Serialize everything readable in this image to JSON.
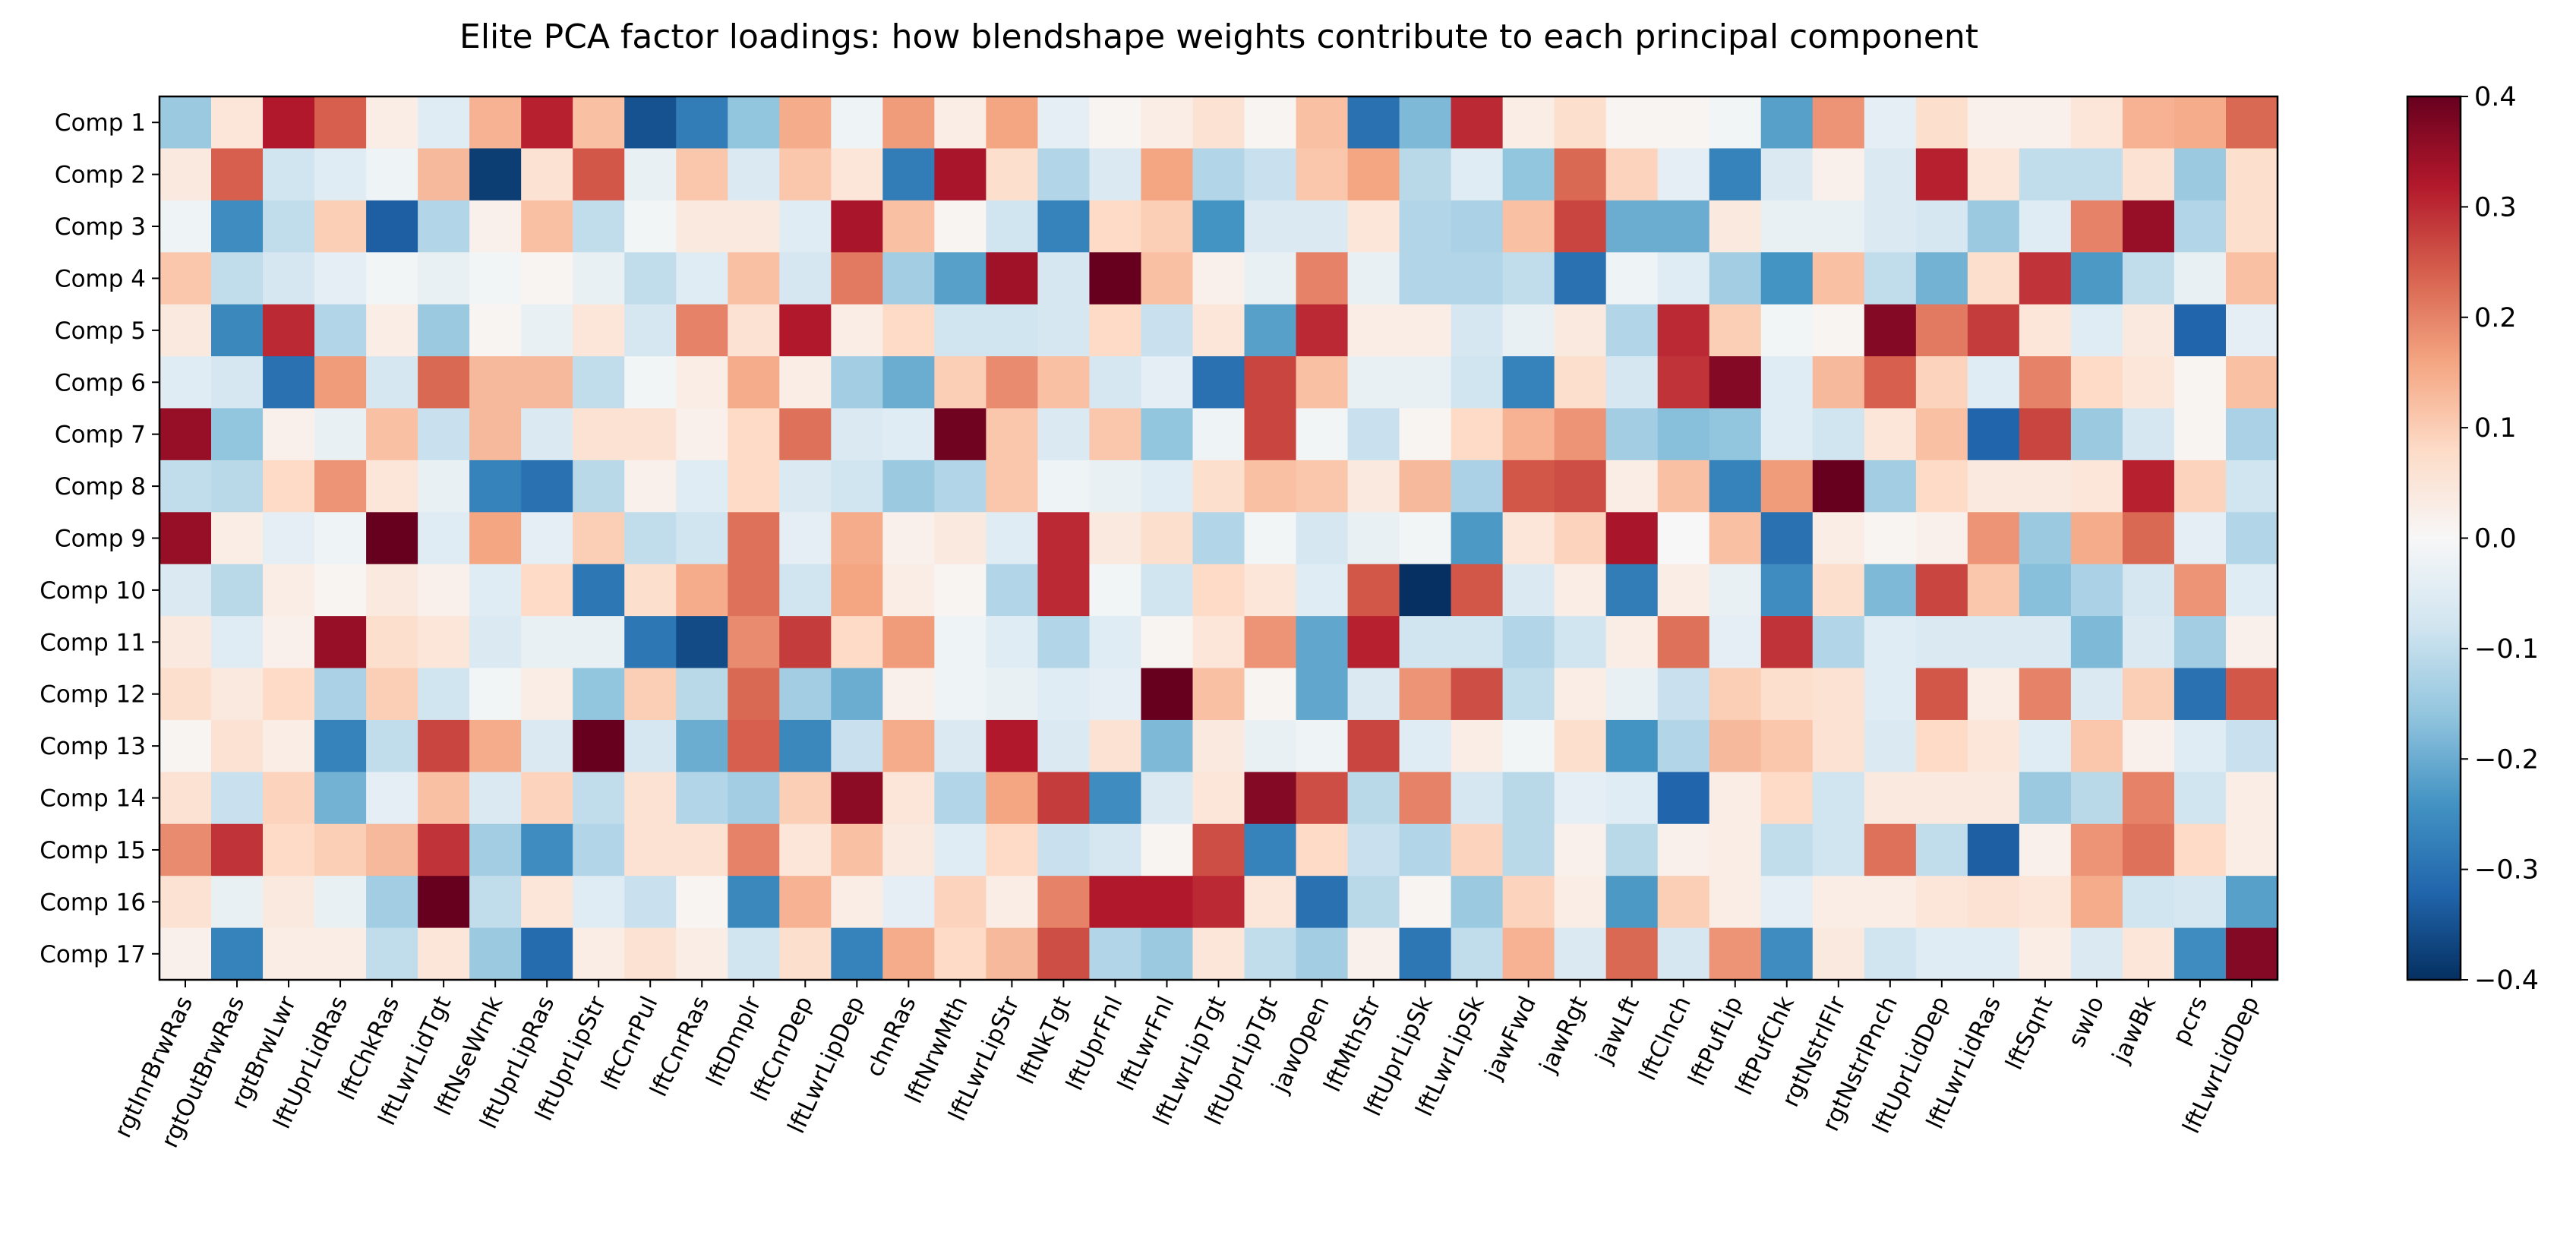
{
  "chart_data": {
    "type": "heatmap",
    "title": "Elite PCA factor loadings: how blendshape weights contribute to each principal component",
    "xlabel": "",
    "ylabel": "",
    "colormap": "RdBu_r",
    "vmin": -0.4,
    "vmax": 0.4,
    "colorbar_ticks": [
      "0.4",
      "0.3",
      "0.2",
      "0.1",
      "0.0",
      "−0.1",
      "−0.2",
      "−0.3",
      "−0.4"
    ],
    "colorbar_tick_values": [
      0.4,
      0.3,
      0.2,
      0.1,
      0.0,
      -0.1,
      -0.2,
      -0.3,
      -0.4
    ],
    "rows": [
      "Comp 1",
      "Comp 2",
      "Comp 3",
      "Comp 4",
      "Comp 5",
      "Comp 6",
      "Comp 7",
      "Comp 8",
      "Comp 9",
      "Comp 10",
      "Comp 11",
      "Comp 12",
      "Comp 13",
      "Comp 14",
      "Comp 15",
      "Comp 16",
      "Comp 17"
    ],
    "x_tick_labels": [
      "rgtInrBrwRas",
      "rgtOutBrwRas",
      "rgtBrwLwr",
      "lftUprLidRas",
      "lftChkRas",
      "lftLwrLidTgt",
      "lftNseWrnk",
      "lftUprLipRas",
      "lftUprLipStr",
      "lftCnrPul",
      "lftCnrRas",
      "lftDmplr",
      "lftCnrDep",
      "lftLwrLipDep",
      "chnRas",
      "lftNrwMth",
      "lftLwrLipStr",
      "lftNkTgt",
      "lftUprFnl",
      "lftLwrFnl",
      "lftLwrLipTgt",
      "lftUprLipTgt",
      "jawOpen",
      "lftMthStr",
      "lftUprLipSk",
      "lftLwrLipSk",
      "jawFwd",
      "jawRgt",
      "jawLft",
      "lftClnch",
      "lftPufLip",
      "lftPufChk",
      "rgtNstrlFlr",
      "rgtNstrlPnch",
      "lftUprLidDep",
      "lftLwrLidRas",
      "lftSqnt",
      "swlo",
      "jawBk",
      "pcrs",
      "lftLwrLidDep"
    ],
    "values": [
      [
        -0.15,
        0.05,
        0.32,
        0.24,
        0.03,
        -0.05,
        0.14,
        0.31,
        0.12,
        -0.35,
        -0.28,
        -0.16,
        0.15,
        -0.02,
        0.17,
        0.03,
        0.16,
        -0.04,
        0.01,
        0.03,
        0.06,
        0.01,
        0.12,
        -0.3,
        -0.18,
        0.3,
        0.03,
        0.07,
        0.01,
        0.01,
        -0.01,
        -0.22,
        0.18,
        -0.04,
        0.07,
        0.02,
        0.02,
        0.05,
        0.14,
        0.15,
        0.23
      ],
      [
        0.04,
        0.24,
        -0.08,
        -0.05,
        -0.02,
        0.13,
        -0.38,
        0.06,
        0.25,
        -0.03,
        0.11,
        -0.06,
        0.11,
        0.05,
        -0.28,
        0.33,
        0.07,
        -0.12,
        -0.06,
        0.16,
        -0.12,
        -0.09,
        0.11,
        0.16,
        -0.11,
        -0.05,
        -0.16,
        0.23,
        0.09,
        -0.04,
        -0.27,
        -0.06,
        0.02,
        -0.06,
        0.31,
        0.05,
        -0.1,
        -0.1,
        0.06,
        -0.15,
        0.07
      ],
      [
        -0.02,
        -0.25,
        -0.1,
        0.1,
        -0.33,
        -0.12,
        0.02,
        0.12,
        -0.1,
        -0.01,
        0.04,
        0.04,
        -0.05,
        0.33,
        0.12,
        0.01,
        -0.08,
        -0.27,
        0.08,
        0.1,
        -0.24,
        -0.06,
        -0.06,
        0.05,
        -0.12,
        -0.13,
        0.12,
        0.27,
        -0.2,
        -0.2,
        0.04,
        -0.03,
        -0.03,
        -0.06,
        -0.07,
        -0.15,
        -0.05,
        0.2,
        0.35,
        -0.12,
        0.07
      ],
      [
        0.11,
        -0.1,
        -0.07,
        -0.04,
        -0.01,
        -0.03,
        -0.01,
        0.01,
        -0.03,
        -0.1,
        -0.05,
        0.12,
        -0.07,
        0.21,
        -0.14,
        -0.22,
        0.34,
        -0.07,
        0.4,
        0.12,
        0.02,
        -0.03,
        0.2,
        -0.03,
        -0.12,
        -0.12,
        -0.1,
        -0.3,
        -0.02,
        -0.05,
        -0.14,
        -0.24,
        0.12,
        -0.1,
        -0.19,
        0.07,
        0.29,
        -0.23,
        -0.1,
        -0.03,
        0.12
      ],
      [
        0.04,
        -0.26,
        0.3,
        -0.12,
        0.03,
        -0.15,
        0.01,
        -0.03,
        0.05,
        -0.07,
        0.2,
        0.06,
        0.32,
        0.03,
        0.08,
        -0.08,
        -0.08,
        -0.07,
        0.08,
        -0.09,
        0.05,
        -0.22,
        0.3,
        0.03,
        0.03,
        -0.07,
        -0.03,
        0.04,
        -0.12,
        0.3,
        0.1,
        -0.01,
        0.01,
        0.37,
        0.21,
        0.28,
        0.05,
        -0.05,
        0.04,
        -0.32,
        -0.04
      ],
      [
        -0.05,
        -0.07,
        -0.3,
        0.17,
        -0.07,
        0.23,
        0.13,
        0.13,
        -0.1,
        -0.01,
        0.03,
        0.15,
        0.03,
        -0.14,
        -0.2,
        0.1,
        0.19,
        0.12,
        -0.07,
        -0.04,
        -0.3,
        0.27,
        0.12,
        -0.03,
        -0.03,
        -0.08,
        -0.27,
        0.07,
        -0.07,
        0.29,
        0.37,
        -0.05,
        0.13,
        0.24,
        0.09,
        -0.05,
        0.2,
        0.08,
        0.05,
        0.01,
        0.12
      ],
      [
        0.35,
        -0.16,
        0.02,
        -0.03,
        0.12,
        -0.09,
        0.13,
        -0.06,
        0.06,
        0.06,
        0.02,
        0.08,
        0.22,
        -0.06,
        -0.05,
        0.39,
        0.11,
        -0.06,
        0.11,
        -0.16,
        -0.02,
        0.27,
        -0.01,
        -0.09,
        0.01,
        0.08,
        0.14,
        0.18,
        -0.14,
        -0.17,
        -0.16,
        -0.05,
        -0.08,
        0.05,
        0.12,
        -0.32,
        0.27,
        -0.15,
        -0.07,
        0.01,
        -0.13
      ],
      [
        -0.1,
        -0.11,
        0.08,
        0.18,
        0.05,
        -0.03,
        -0.27,
        -0.3,
        -0.11,
        0.02,
        -0.05,
        0.08,
        -0.06,
        -0.08,
        -0.15,
        -0.12,
        0.11,
        -0.02,
        -0.03,
        -0.05,
        0.07,
        0.12,
        0.11,
        0.04,
        0.13,
        -0.13,
        0.25,
        0.26,
        0.03,
        0.12,
        -0.27,
        0.17,
        0.4,
        -0.14,
        0.08,
        0.04,
        0.04,
        0.05,
        0.31,
        0.09,
        -0.08
      ],
      [
        0.35,
        0.03,
        -0.04,
        -0.02,
        0.4,
        -0.05,
        0.16,
        -0.04,
        0.1,
        -0.1,
        -0.08,
        0.22,
        -0.04,
        0.15,
        0.02,
        0.04,
        -0.05,
        0.3,
        0.04,
        0.07,
        -0.12,
        -0.01,
        -0.07,
        -0.03,
        -0.01,
        -0.23,
        0.05,
        0.09,
        0.33,
        0.0,
        0.12,
        -0.3,
        0.03,
        0.01,
        0.02,
        0.18,
        -0.15,
        0.15,
        0.23,
        -0.04,
        -0.12
      ],
      [
        -0.06,
        -0.11,
        0.03,
        0.01,
        0.04,
        0.02,
        -0.05,
        0.08,
        -0.29,
        0.07,
        0.15,
        0.22,
        -0.08,
        0.16,
        0.03,
        0.01,
        -0.12,
        0.3,
        -0.01,
        -0.08,
        0.08,
        0.05,
        -0.05,
        0.25,
        -0.4,
        0.25,
        -0.06,
        0.03,
        -0.28,
        0.03,
        -0.03,
        -0.25,
        0.07,
        -0.18,
        0.27,
        0.11,
        -0.17,
        -0.13,
        -0.07,
        0.18,
        -0.05
      ],
      [
        0.04,
        -0.05,
        0.02,
        0.35,
        0.07,
        0.05,
        -0.06,
        -0.03,
        -0.03,
        -0.29,
        -0.36,
        0.19,
        0.28,
        0.08,
        0.17,
        -0.02,
        -0.05,
        -0.12,
        -0.05,
        0.01,
        0.05,
        0.18,
        -0.21,
        0.31,
        -0.08,
        -0.08,
        -0.12,
        -0.08,
        0.03,
        0.22,
        -0.04,
        0.29,
        -0.12,
        -0.05,
        -0.06,
        -0.06,
        -0.06,
        -0.18,
        -0.06,
        -0.14,
        0.02
      ],
      [
        0.07,
        0.04,
        0.08,
        -0.13,
        0.1,
        -0.08,
        -0.01,
        0.03,
        -0.16,
        0.1,
        -0.11,
        0.23,
        -0.14,
        -0.2,
        0.02,
        -0.02,
        -0.03,
        -0.05,
        -0.04,
        0.4,
        0.12,
        0.01,
        -0.21,
        -0.06,
        0.18,
        0.26,
        -0.1,
        0.03,
        -0.03,
        -0.09,
        0.1,
        0.07,
        0.06,
        -0.05,
        0.25,
        0.03,
        0.2,
        -0.06,
        0.1,
        -0.3,
        0.25
      ],
      [
        0.01,
        0.06,
        0.03,
        -0.27,
        -0.1,
        0.27,
        0.15,
        -0.06,
        0.4,
        -0.07,
        -0.2,
        0.24,
        -0.26,
        -0.09,
        0.15,
        -0.06,
        0.32,
        -0.06,
        0.06,
        -0.18,
        0.04,
        -0.03,
        -0.02,
        0.27,
        -0.05,
        0.03,
        -0.01,
        0.07,
        -0.24,
        -0.12,
        0.13,
        0.11,
        0.06,
        -0.06,
        0.08,
        0.05,
        -0.05,
        0.11,
        0.02,
        -0.05,
        -0.09
      ],
      [
        0.06,
        -0.09,
        0.09,
        -0.19,
        -0.04,
        0.12,
        -0.06,
        0.09,
        -0.1,
        0.06,
        -0.12,
        -0.14,
        0.1,
        0.36,
        0.05,
        -0.12,
        0.16,
        0.28,
        -0.25,
        -0.06,
        0.05,
        0.37,
        0.26,
        -0.11,
        0.2,
        -0.07,
        -0.11,
        -0.04,
        -0.05,
        -0.32,
        0.03,
        0.08,
        -0.08,
        0.04,
        0.04,
        0.04,
        -0.15,
        -0.11,
        0.2,
        -0.08,
        0.03
      ],
      [
        0.19,
        0.29,
        0.08,
        0.1,
        0.13,
        0.29,
        -0.14,
        -0.25,
        -0.12,
        0.06,
        0.06,
        0.2,
        0.05,
        0.12,
        0.04,
        -0.05,
        0.08,
        -0.09,
        -0.07,
        0.01,
        0.26,
        -0.27,
        0.08,
        -0.09,
        -0.12,
        0.09,
        -0.11,
        0.02,
        -0.11,
        0.02,
        0.03,
        -0.1,
        -0.08,
        0.22,
        -0.1,
        -0.33,
        0.02,
        0.18,
        0.22,
        0.08,
        0.03
      ],
      [
        0.06,
        -0.03,
        0.04,
        -0.03,
        -0.14,
        0.4,
        -0.1,
        0.05,
        -0.05,
        -0.09,
        0.01,
        -0.26,
        0.14,
        0.03,
        -0.04,
        0.09,
        0.03,
        0.2,
        0.32,
        0.32,
        0.3,
        0.05,
        -0.3,
        -0.11,
        0.01,
        -0.15,
        0.09,
        0.03,
        -0.23,
        0.1,
        0.03,
        -0.04,
        0.03,
        0.03,
        0.05,
        0.06,
        0.05,
        0.15,
        -0.08,
        -0.07,
        -0.22
      ],
      [
        0.02,
        -0.27,
        0.03,
        0.03,
        -0.1,
        0.05,
        -0.15,
        -0.31,
        0.03,
        0.06,
        0.03,
        -0.08,
        0.07,
        -0.27,
        0.15,
        0.08,
        0.13,
        0.26,
        -0.12,
        -0.15,
        0.05,
        -0.1,
        -0.14,
        0.02,
        -0.29,
        -0.1,
        0.14,
        -0.06,
        0.23,
        -0.07,
        0.18,
        -0.25,
        0.04,
        -0.08,
        -0.05,
        -0.05,
        0.03,
        -0.06,
        0.05,
        -0.25,
        0.37
      ]
    ]
  }
}
